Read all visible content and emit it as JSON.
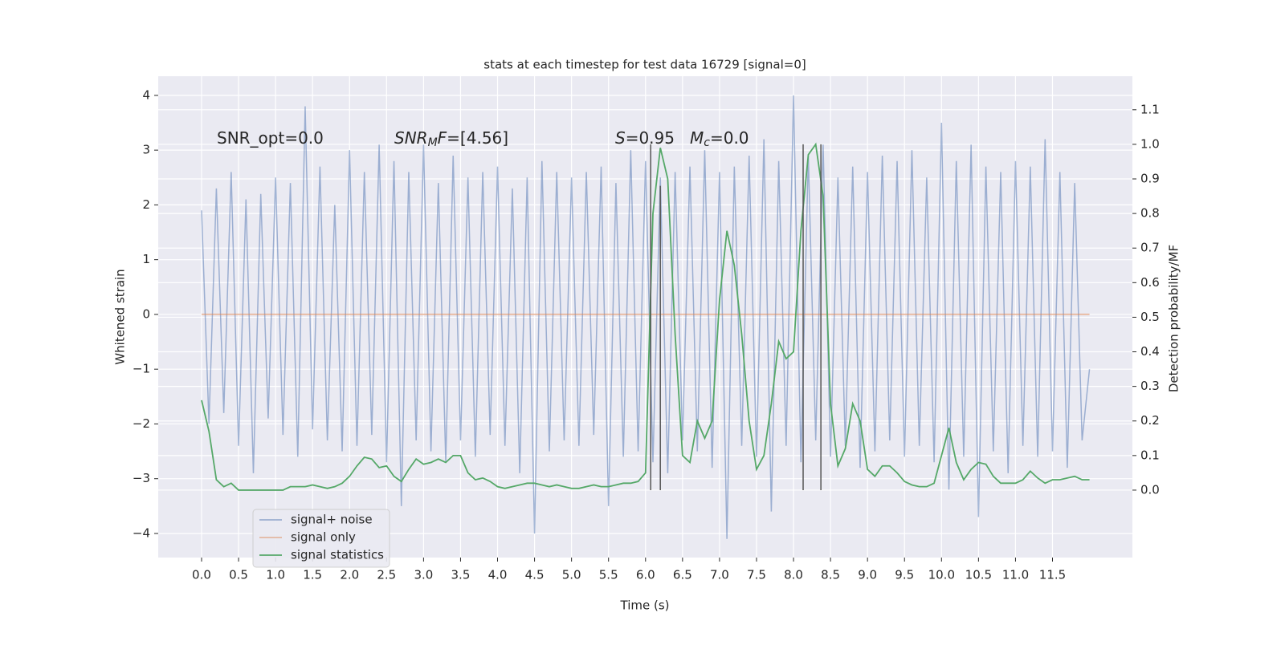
{
  "chart_data": {
    "type": "line",
    "title": "stats at each timestep for test data 16729 [signal=0]",
    "xlabel": "Time (s)",
    "ylabel": "Whitened strain",
    "y2label": "Detection probability/MF",
    "xlim": [
      -0.586,
      12.58
    ],
    "ylim": [
      -4.44,
      4.35
    ],
    "y2lim": [
      -0.195,
      1.197
    ],
    "xticks": [
      {
        "value": 0,
        "label": "0.0"
      },
      0.5,
      {
        "value": 1,
        "label": "1.0"
      },
      1.5,
      {
        "value": 2,
        "label": "2.0"
      },
      2.5,
      {
        "value": 3,
        "label": "3.0"
      },
      3.5,
      {
        "value": 4,
        "label": "4.0"
      },
      4.5,
      {
        "value": 5,
        "label": "5.0"
      },
      5.5,
      {
        "value": 6,
        "label": "6.0"
      },
      6.5,
      {
        "value": 7,
        "label": "7.0"
      },
      7.5,
      {
        "value": 8,
        "label": "8.0"
      },
      8.5,
      {
        "value": 9,
        "label": "9.0"
      },
      9.5,
      {
        "value": 10,
        "label": "10.0"
      },
      10.5,
      {
        "value": 11,
        "label": "11.0"
      },
      11.5
    ],
    "yticks": [
      {
        "value": -4,
        "label": "−4"
      },
      {
        "value": -3,
        "label": "−3"
      },
      {
        "value": -2,
        "label": "−2"
      },
      {
        "value": -1,
        "label": "−1"
      },
      0,
      1,
      2,
      3,
      4
    ],
    "y2ticks": [
      {
        "value": 0,
        "label": "0.0"
      },
      0.1,
      0.2,
      0.3,
      0.4,
      0.5,
      0.6,
      0.7,
      0.8,
      0.9,
      {
        "value": 1,
        "label": "1.0"
      },
      1.1
    ],
    "grid": true,
    "legend": "lower left",
    "x": [
      0.0,
      0.1,
      0.2,
      0.3,
      0.4,
      0.5,
      0.6,
      0.7,
      0.8,
      0.9,
      1.0,
      1.1,
      1.2,
      1.3,
      1.4,
      1.5,
      1.6,
      1.7,
      1.8,
      1.9,
      2.0,
      2.1,
      2.2,
      2.3,
      2.4,
      2.5,
      2.6,
      2.7,
      2.8,
      2.9,
      3.0,
      3.1,
      3.2,
      3.3,
      3.4,
      3.5,
      3.6,
      3.7,
      3.8,
      3.9,
      4.0,
      4.1,
      4.2,
      4.3,
      4.4,
      4.5,
      4.6,
      4.7,
      4.8,
      4.9,
      5.0,
      5.1,
      5.2,
      5.3,
      5.4,
      5.5,
      5.6,
      5.7,
      5.8,
      5.9,
      6.0,
      6.1,
      6.2,
      6.3,
      6.4,
      6.5,
      6.6,
      6.7,
      6.8,
      6.9,
      7.0,
      7.1,
      7.2,
      7.3,
      7.4,
      7.5,
      7.6,
      7.7,
      7.8,
      7.9,
      8.0,
      8.1,
      8.2,
      8.3,
      8.4,
      8.5,
      8.6,
      8.7,
      8.8,
      8.9,
      9.0,
      9.1,
      9.2,
      9.3,
      9.4,
      9.5,
      9.6,
      9.7,
      9.8,
      9.9,
      10.0,
      10.1,
      10.2,
      10.3,
      10.4,
      10.5,
      10.6,
      10.7,
      10.8,
      10.9,
      11.0,
      11.1,
      11.2,
      11.3,
      11.4,
      11.5,
      11.6,
      11.7,
      11.8,
      11.9,
      12.0
    ],
    "series": [
      {
        "name": "signal+ noise",
        "color": "#4c72b0",
        "values": [
          1.9,
          -2.0,
          2.3,
          -1.8,
          2.6,
          -2.4,
          2.1,
          -2.9,
          2.2,
          -1.9,
          2.5,
          -2.2,
          2.4,
          -2.6,
          3.8,
          -2.1,
          2.7,
          -2.3,
          2.0,
          -2.5,
          3.0,
          -2.4,
          2.6,
          -2.2,
          3.1,
          -2.7,
          2.8,
          -3.5,
          2.6,
          -2.3,
          3.1,
          -2.5,
          2.4,
          -2.7,
          2.9,
          -2.3,
          2.5,
          -2.6,
          2.6,
          -2.2,
          2.7,
          -2.4,
          2.3,
          -2.9,
          2.5,
          -4.0,
          2.8,
          -2.5,
          2.6,
          -2.3,
          2.5,
          -2.4,
          2.6,
          -2.2,
          2.7,
          -3.5,
          2.4,
          -2.6,
          3.0,
          -2.5,
          2.8,
          -2.7,
          2.5,
          -2.9,
          2.6,
          -2.3,
          2.7,
          -2.5,
          3.0,
          -2.8,
          2.6,
          -4.1,
          2.7,
          -2.4,
          2.9,
          -2.6,
          3.2,
          -3.6,
          2.8,
          -2.4,
          4.0,
          -2.7,
          2.9,
          -2.3,
          3.1,
          -2.6,
          2.5,
          -2.4,
          2.7,
          -2.8,
          2.6,
          -2.5,
          2.9,
          -2.3,
          2.8,
          -2.6,
          3.0,
          -2.4,
          2.5,
          -2.7,
          3.5,
          -3.2,
          2.8,
          -2.6,
          3.1,
          -3.7,
          2.7,
          -2.5,
          2.6,
          -2.9,
          2.8,
          -2.4,
          2.7,
          -2.6,
          3.2,
          -2.5,
          2.6,
          -2.8,
          2.4,
          -2.3,
          -1.0
        ]
      },
      {
        "name": "signal only",
        "color": "#dd8452",
        "values": [
          0,
          0,
          0,
          0,
          0,
          0,
          0,
          0,
          0,
          0,
          0,
          0,
          0,
          0,
          0,
          0,
          0,
          0,
          0,
          0,
          0,
          0,
          0,
          0,
          0,
          0,
          0,
          0,
          0,
          0,
          0,
          0,
          0,
          0,
          0,
          0,
          0,
          0,
          0,
          0,
          0,
          0,
          0,
          0,
          0,
          0,
          0,
          0,
          0,
          0,
          0,
          0,
          0,
          0,
          0,
          0,
          0,
          0,
          0,
          0,
          0,
          0,
          0,
          0,
          0,
          0,
          0,
          0,
          0,
          0,
          0,
          0,
          0,
          0,
          0,
          0,
          0,
          0,
          0,
          0,
          0,
          0,
          0,
          0,
          0,
          0,
          0,
          0,
          0,
          0,
          0,
          0,
          0,
          0,
          0,
          0,
          0,
          0,
          0,
          0,
          0,
          0,
          0,
          0,
          0,
          0,
          0,
          0,
          0,
          0,
          0,
          0,
          0,
          0,
          0,
          0,
          0,
          0,
          0,
          0,
          0
        ]
      },
      {
        "name": "signal statistics",
        "color": "#55a868",
        "axis": "y2",
        "values": [
          0.26,
          0.17,
          0.03,
          0.01,
          0.02,
          0.0,
          0.0,
          0.0,
          0.0,
          0.0,
          0.0,
          0.0,
          0.01,
          0.01,
          0.01,
          0.015,
          0.01,
          0.005,
          0.01,
          0.02,
          0.04,
          0.07,
          0.095,
          0.09,
          0.065,
          0.07,
          0.04,
          0.025,
          0.06,
          0.09,
          0.075,
          0.08,
          0.09,
          0.08,
          0.1,
          0.1,
          0.05,
          0.03,
          0.035,
          0.025,
          0.01,
          0.005,
          0.01,
          0.015,
          0.02,
          0.02,
          0.015,
          0.01,
          0.015,
          0.01,
          0.005,
          0.005,
          0.01,
          0.015,
          0.01,
          0.01,
          0.015,
          0.02,
          0.02,
          0.025,
          0.05,
          0.8,
          0.99,
          0.9,
          0.45,
          0.1,
          0.08,
          0.2,
          0.15,
          0.2,
          0.55,
          0.75,
          0.65,
          0.45,
          0.2,
          0.06,
          0.1,
          0.25,
          0.43,
          0.38,
          0.4,
          0.75,
          0.97,
          1.0,
          0.85,
          0.25,
          0.07,
          0.12,
          0.25,
          0.2,
          0.06,
          0.04,
          0.07,
          0.07,
          0.05,
          0.025,
          0.015,
          0.01,
          0.01,
          0.02,
          0.1,
          0.18,
          0.08,
          0.03,
          0.06,
          0.08,
          0.075,
          0.04,
          0.02,
          0.02,
          0.02,
          0.03,
          0.055,
          0.035,
          0.02,
          0.03,
          0.03,
          0.035,
          0.04,
          0.03,
          0.03
        ]
      }
    ],
    "vlines": {
      "x": [
        6.07,
        6.2,
        8.13,
        8.37
      ],
      "ymin": 0,
      "ymax": [
        1.0,
        0.88,
        1.0,
        1.0
      ],
      "color": "#555555"
    },
    "annotations": [
      {
        "parts": [
          {
            "text": "SNR_opt=0.0"
          }
        ]
      },
      {
        "parts": [
          {
            "text": "SNR",
            "italic": true
          },
          {
            "text": "M",
            "italic": true,
            "sub": true
          },
          {
            "text": "F",
            "italic": true
          },
          {
            "text": "=[4.56]"
          }
        ]
      },
      {
        "parts": [
          {
            "text": "S",
            "italic": true
          },
          {
            "text": "=0.95"
          }
        ]
      },
      {
        "parts": [
          {
            "text": "M",
            "italic": true
          },
          {
            "text": "c",
            "italic": true,
            "sub": true
          },
          {
            "text": "=0.0"
          }
        ]
      }
    ]
  }
}
